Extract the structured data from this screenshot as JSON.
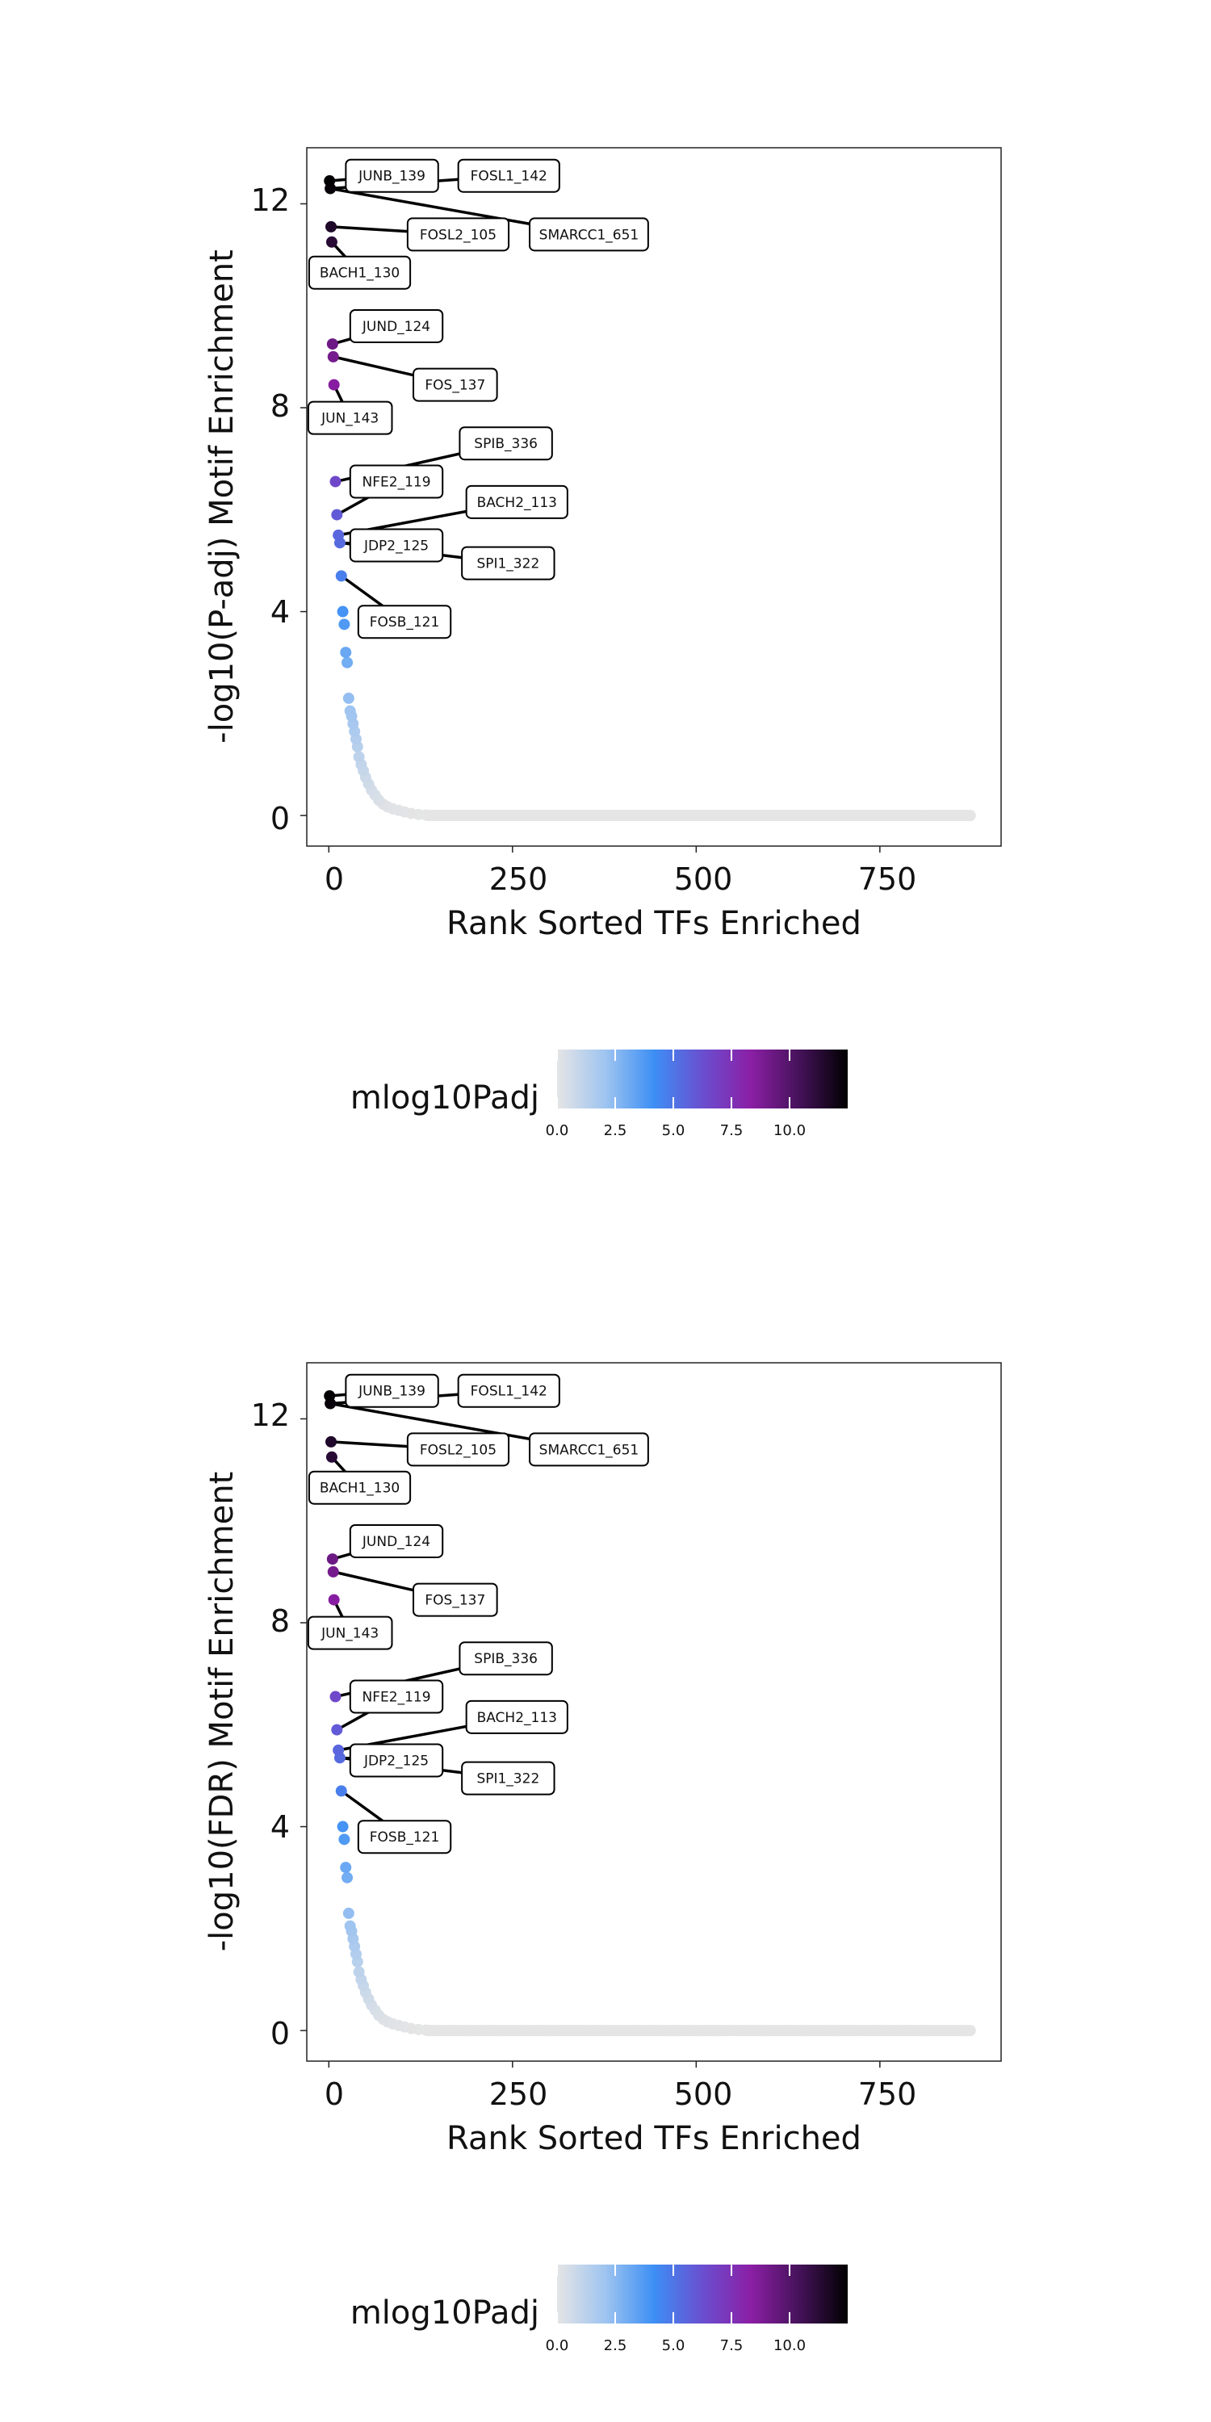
{
  "chart_data": [
    {
      "type": "scatter",
      "title": "",
      "xlabel": "Rank Sorted TFs Enriched",
      "ylabel": "-log10(P-adj) Motif Enrichment",
      "xlim": [
        -30,
        915
      ],
      "ylim": [
        -0.6,
        13.1
      ],
      "x_ticks": [
        0,
        250,
        500,
        750
      ],
      "x_tick_labels": [
        "0",
        "250",
        "500",
        "750"
      ],
      "y_ticks": [
        0,
        4,
        8,
        12
      ],
      "y_tick_labels": [
        "0",
        "4",
        "8",
        "12"
      ],
      "grid": false,
      "colorbar": {
        "title": "mlog10Padj",
        "ticks": [
          0,
          2.5,
          5,
          7.5,
          10
        ],
        "tick_labels": [
          "0.0",
          "2.5",
          "5.0",
          "7.5",
          "10.0"
        ],
        "range": [
          0,
          12.5
        ],
        "colors": [
          "#e5e5e5",
          "#9ec4f0",
          "#3d8ff5",
          "#6a4fd0",
          "#8b1fa5",
          "#45125a",
          "#000000"
        ]
      },
      "points": [
        {
          "x": 1,
          "y": 12.45
        },
        {
          "x": 2,
          "y": 12.3
        },
        {
          "x": 3,
          "y": 11.55
        },
        {
          "x": 4,
          "y": 11.25
        },
        {
          "x": 5,
          "y": 9.25
        },
        {
          "x": 6,
          "y": 9.0
        },
        {
          "x": 7,
          "y": 8.45
        },
        {
          "x": 9,
          "y": 6.55
        },
        {
          "x": 11,
          "y": 5.9
        },
        {
          "x": 13,
          "y": 5.5
        },
        {
          "x": 15,
          "y": 5.35
        },
        {
          "x": 17,
          "y": 4.7
        },
        {
          "x": 19,
          "y": 4.0
        },
        {
          "x": 21,
          "y": 3.75
        },
        {
          "x": 23,
          "y": 3.2
        },
        {
          "x": 25,
          "y": 3.0
        },
        {
          "x": 27,
          "y": 2.3
        },
        {
          "x": 29,
          "y": 2.05
        },
        {
          "x": 31,
          "y": 1.95
        },
        {
          "x": 33,
          "y": 1.8
        },
        {
          "x": 35,
          "y": 1.65
        },
        {
          "x": 37,
          "y": 1.5
        },
        {
          "x": 39,
          "y": 1.35
        },
        {
          "x": 41,
          "y": 1.15
        },
        {
          "x": 44,
          "y": 1.0
        },
        {
          "x": 47,
          "y": 0.88
        },
        {
          "x": 50,
          "y": 0.75
        },
        {
          "x": 54,
          "y": 0.62
        },
        {
          "x": 58,
          "y": 0.5
        },
        {
          "x": 63,
          "y": 0.4
        },
        {
          "x": 68,
          "y": 0.3
        },
        {
          "x": 74,
          "y": 0.22
        },
        {
          "x": 80,
          "y": 0.17
        },
        {
          "x": 87,
          "y": 0.13
        },
        {
          "x": 95,
          "y": 0.1
        },
        {
          "x": 103,
          "y": 0.07
        },
        {
          "x": 112,
          "y": 0.04
        },
        {
          "x": 122,
          "y": 0.02
        },
        {
          "x": 132,
          "y": 0.01
        }
      ],
      "baseline_points": {
        "x_start": 135,
        "x_end": 875,
        "step": 3,
        "y": 0
      },
      "labels": [
        {
          "label": "JUNB_139",
          "x": 1,
          "y": 12.45,
          "label_x": 86,
          "label_y": 12.55
        },
        {
          "label": "FOSL1_142",
          "x": 2,
          "y": 12.3,
          "label_x": 245,
          "label_y": 12.55
        },
        {
          "label": "FOSL2_105",
          "x": 3,
          "y": 11.55,
          "label_x": 176,
          "label_y": 11.4
        },
        {
          "label": "SMARCC1_651",
          "x": 2,
          "y": 12.3,
          "label_x": 354,
          "label_y": 11.4
        },
        {
          "label": "BACH1_130",
          "x": 4,
          "y": 11.25,
          "label_x": 42,
          "label_y": 10.65
        },
        {
          "label": "JUND_124",
          "x": 5,
          "y": 9.25,
          "label_x": 92,
          "label_y": 9.6
        },
        {
          "label": "FOS_137",
          "x": 6,
          "y": 9.0,
          "label_x": 172,
          "label_y": 8.45
        },
        {
          "label": "JUN_143",
          "x": 7,
          "y": 8.45,
          "label_x": 29,
          "label_y": 7.8
        },
        {
          "label": "SPIB_336",
          "x": 9,
          "y": 6.55,
          "label_x": 241,
          "label_y": 7.3
        },
        {
          "label": "NFE2_119",
          "x": 11,
          "y": 5.9,
          "label_x": 92,
          "label_y": 6.55
        },
        {
          "label": "BACH2_113",
          "x": 13,
          "y": 5.5,
          "label_x": 256,
          "label_y": 6.15
        },
        {
          "label": "JDP2_125",
          "x": 15,
          "y": 5.35,
          "label_x": 92,
          "label_y": 5.3
        },
        {
          "label": "SPI1_322",
          "x": 15,
          "y": 5.35,
          "label_x": 244,
          "label_y": 4.95
        },
        {
          "label": "FOSB_121",
          "x": 17,
          "y": 4.7,
          "label_x": 103,
          "label_y": 3.8
        }
      ]
    },
    {
      "type": "scatter",
      "title": "",
      "xlabel": "Rank Sorted TFs Enriched",
      "ylabel": "-log10(FDR) Motif Enrichment",
      "xlim": [
        -30,
        915
      ],
      "ylim": [
        -0.6,
        13.1
      ],
      "x_ticks": [
        0,
        250,
        500,
        750
      ],
      "x_tick_labels": [
        "0",
        "250",
        "500",
        "750"
      ],
      "y_ticks": [
        0,
        4,
        8,
        12
      ],
      "y_tick_labels": [
        "0",
        "4",
        "8",
        "12"
      ],
      "grid": false,
      "colorbar": {
        "title": "mlog10Padj",
        "ticks": [
          0,
          2.5,
          5,
          7.5,
          10
        ],
        "tick_labels": [
          "0.0",
          "2.5",
          "5.0",
          "7.5",
          "10.0"
        ],
        "range": [
          0,
          12.5
        ],
        "colors": [
          "#e5e5e5",
          "#9ec4f0",
          "#3d8ff5",
          "#6a4fd0",
          "#8b1fa5",
          "#45125a",
          "#000000"
        ]
      },
      "points": [
        {
          "x": 1,
          "y": 12.45
        },
        {
          "x": 2,
          "y": 12.3
        },
        {
          "x": 3,
          "y": 11.55
        },
        {
          "x": 4,
          "y": 11.25
        },
        {
          "x": 5,
          "y": 9.25
        },
        {
          "x": 6,
          "y": 9.0
        },
        {
          "x": 7,
          "y": 8.45
        },
        {
          "x": 9,
          "y": 6.55
        },
        {
          "x": 11,
          "y": 5.9
        },
        {
          "x": 13,
          "y": 5.5
        },
        {
          "x": 15,
          "y": 5.35
        },
        {
          "x": 17,
          "y": 4.7
        },
        {
          "x": 19,
          "y": 4.0
        },
        {
          "x": 21,
          "y": 3.75
        },
        {
          "x": 23,
          "y": 3.2
        },
        {
          "x": 25,
          "y": 3.0
        },
        {
          "x": 27,
          "y": 2.3
        },
        {
          "x": 29,
          "y": 2.05
        },
        {
          "x": 31,
          "y": 1.95
        },
        {
          "x": 33,
          "y": 1.8
        },
        {
          "x": 35,
          "y": 1.65
        },
        {
          "x": 37,
          "y": 1.5
        },
        {
          "x": 39,
          "y": 1.35
        },
        {
          "x": 41,
          "y": 1.15
        },
        {
          "x": 44,
          "y": 1.0
        },
        {
          "x": 47,
          "y": 0.88
        },
        {
          "x": 50,
          "y": 0.75
        },
        {
          "x": 54,
          "y": 0.62
        },
        {
          "x": 58,
          "y": 0.5
        },
        {
          "x": 63,
          "y": 0.4
        },
        {
          "x": 68,
          "y": 0.3
        },
        {
          "x": 74,
          "y": 0.22
        },
        {
          "x": 80,
          "y": 0.17
        },
        {
          "x": 87,
          "y": 0.13
        },
        {
          "x": 95,
          "y": 0.1
        },
        {
          "x": 103,
          "y": 0.07
        },
        {
          "x": 112,
          "y": 0.04
        },
        {
          "x": 122,
          "y": 0.02
        },
        {
          "x": 132,
          "y": 0.01
        }
      ],
      "baseline_points": {
        "x_start": 135,
        "x_end": 875,
        "step": 3,
        "y": 0
      },
      "labels": [
        {
          "label": "JUNB_139",
          "x": 1,
          "y": 12.45,
          "label_x": 86,
          "label_y": 12.55
        },
        {
          "label": "FOSL1_142",
          "x": 2,
          "y": 12.3,
          "label_x": 245,
          "label_y": 12.55
        },
        {
          "label": "FOSL2_105",
          "x": 3,
          "y": 11.55,
          "label_x": 176,
          "label_y": 11.4
        },
        {
          "label": "SMARCC1_651",
          "x": 2,
          "y": 12.3,
          "label_x": 354,
          "label_y": 11.4
        },
        {
          "label": "BACH1_130",
          "x": 4,
          "y": 11.25,
          "label_x": 42,
          "label_y": 10.65
        },
        {
          "label": "JUND_124",
          "x": 5,
          "y": 9.25,
          "label_x": 92,
          "label_y": 9.6
        },
        {
          "label": "FOS_137",
          "x": 6,
          "y": 9.0,
          "label_x": 172,
          "label_y": 8.45
        },
        {
          "label": "JUN_143",
          "x": 7,
          "y": 8.45,
          "label_x": 29,
          "label_y": 7.8
        },
        {
          "label": "SPIB_336",
          "x": 9,
          "y": 6.55,
          "label_x": 241,
          "label_y": 7.3
        },
        {
          "label": "NFE2_119",
          "x": 11,
          "y": 5.9,
          "label_x": 92,
          "label_y": 6.55
        },
        {
          "label": "BACH2_113",
          "x": 13,
          "y": 5.5,
          "label_x": 256,
          "label_y": 6.15
        },
        {
          "label": "JDP2_125",
          "x": 15,
          "y": 5.35,
          "label_x": 92,
          "label_y": 5.3
        },
        {
          "label": "SPI1_322",
          "x": 15,
          "y": 5.35,
          "label_x": 244,
          "label_y": 4.95
        },
        {
          "label": "FOSB_121",
          "x": 17,
          "y": 4.7,
          "label_x": 103,
          "label_y": 3.8
        }
      ]
    }
  ]
}
